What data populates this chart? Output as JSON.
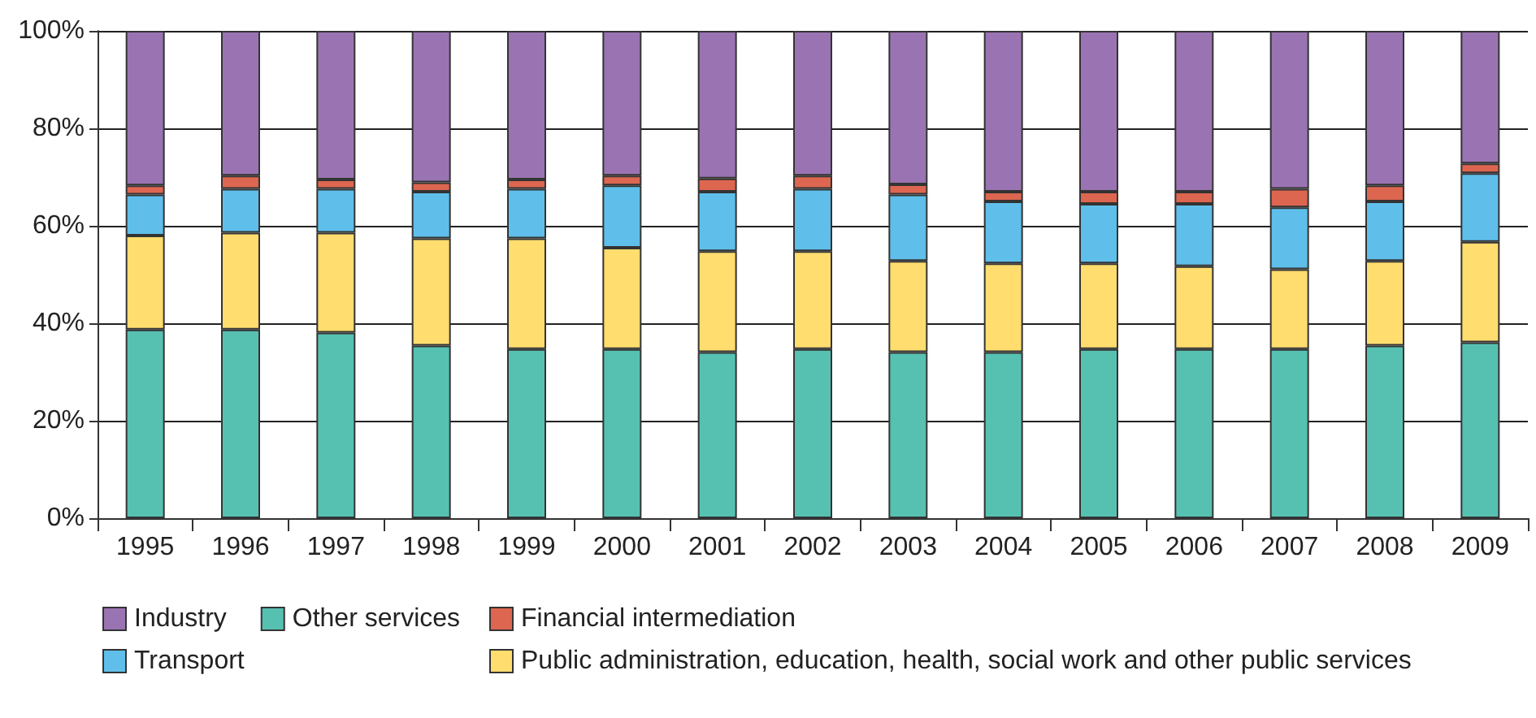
{
  "chart_data": {
    "type": "bar",
    "stacked": true,
    "categories": [
      "1995",
      "1996",
      "1997",
      "1998",
      "1999",
      "2000",
      "2001",
      "2002",
      "2003",
      "2004",
      "2005",
      "2006",
      "2007",
      "2008",
      "2009"
    ],
    "series": [
      {
        "name": "Other services",
        "color": "#57c1b1",
        "values": [
          38.7,
          38.7,
          38.1,
          35.4,
          34.7,
          34.7,
          34.1,
          34.7,
          34.1,
          34.1,
          34.7,
          34.7,
          34.7,
          35.4,
          36.1
        ]
      },
      {
        "name": "Public administration, education, health, social work and other public services",
        "color": "#ffdd6e",
        "values": [
          19.3,
          19.9,
          20.5,
          22.0,
          22.7,
          20.8,
          20.7,
          20.1,
          18.7,
          18.2,
          17.6,
          17.0,
          16.4,
          17.4,
          20.6
        ]
      },
      {
        "name": "Transport",
        "color": "#5fbfea",
        "values": [
          8.4,
          9.0,
          9.0,
          9.6,
          10.2,
          12.8,
          12.2,
          12.8,
          13.6,
          12.7,
          12.2,
          12.8,
          12.7,
          12.2,
          14.1
        ]
      },
      {
        "name": "Financial intermediation",
        "color": "#dd6650",
        "values": [
          1.9,
          2.7,
          1.9,
          1.9,
          1.9,
          2.0,
          2.7,
          2.7,
          2.1,
          2.0,
          2.5,
          2.5,
          3.8,
          3.3,
          2.0
        ]
      },
      {
        "name": "Industry",
        "color": "#9a74b2",
        "values": [
          31.7,
          29.7,
          30.5,
          31.1,
          30.5,
          29.7,
          30.3,
          29.7,
          31.5,
          33.0,
          33.0,
          33.0,
          32.4,
          31.7,
          27.2
        ]
      }
    ],
    "ylim": [
      0,
      100
    ],
    "yticks": [
      {
        "value": 0,
        "label": "0%"
      },
      {
        "value": 20,
        "label": "20%"
      },
      {
        "value": 40,
        "label": "40%"
      },
      {
        "value": 60,
        "label": "60%"
      },
      {
        "value": 80,
        "label": "80%"
      },
      {
        "value": 100,
        "label": "100%"
      }
    ],
    "grid": "y",
    "legend": "bottom"
  }
}
